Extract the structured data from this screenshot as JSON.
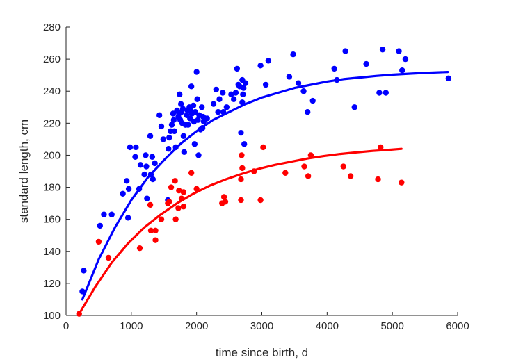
{
  "chart_data": {
    "type": "scatter",
    "xlabel": "time since birth, d",
    "ylabel": "standard length, cm",
    "xlim": [
      0,
      6000
    ],
    "ylim": [
      100,
      280
    ],
    "xticks": [
      0,
      1000,
      2000,
      3000,
      4000,
      5000,
      6000
    ],
    "yticks": [
      100,
      120,
      140,
      160,
      180,
      200,
      220,
      240,
      260,
      280
    ],
    "grid": false,
    "series": [
      {
        "color": "#0000ff",
        "points": [
          [
            270,
            128
          ],
          [
            250,
            115
          ],
          [
            520,
            156
          ],
          [
            580,
            163
          ],
          [
            700,
            163
          ],
          [
            870,
            176
          ],
          [
            930,
            184
          ],
          [
            950,
            161
          ],
          [
            960,
            179
          ],
          [
            980,
            205
          ],
          [
            1060,
            199
          ],
          [
            1070,
            205
          ],
          [
            1120,
            179
          ],
          [
            1140,
            194
          ],
          [
            1200,
            188
          ],
          [
            1220,
            200
          ],
          [
            1230,
            193
          ],
          [
            1240,
            173
          ],
          [
            1290,
            212
          ],
          [
            1300,
            188
          ],
          [
            1320,
            199
          ],
          [
            1330,
            185
          ],
          [
            1360,
            195
          ],
          [
            1430,
            225
          ],
          [
            1460,
            218
          ],
          [
            1490,
            210
          ],
          [
            1560,
            172
          ],
          [
            1570,
            204
          ],
          [
            1580,
            211
          ],
          [
            1600,
            215
          ],
          [
            1620,
            219
          ],
          [
            1640,
            226
          ],
          [
            1650,
            222
          ],
          [
            1660,
            215
          ],
          [
            1680,
            205
          ],
          [
            1700,
            228
          ],
          [
            1720,
            224
          ],
          [
            1730,
            226
          ],
          [
            1740,
            238
          ],
          [
            1750,
            222
          ],
          [
            1760,
            232
          ],
          [
            1770,
            227
          ],
          [
            1780,
            220
          ],
          [
            1790,
            229
          ],
          [
            1800,
            212
          ],
          [
            1810,
            202
          ],
          [
            1830,
            219
          ],
          [
            1850,
            225
          ],
          [
            1860,
            228
          ],
          [
            1870,
            219
          ],
          [
            1890,
            230
          ],
          [
            1900,
            223
          ],
          [
            1910,
            228
          ],
          [
            1920,
            243
          ],
          [
            1930,
            226
          ],
          [
            1950,
            231
          ],
          [
            1960,
            221
          ],
          [
            1970,
            207
          ],
          [
            1980,
            227
          ],
          [
            2000,
            252
          ],
          [
            2010,
            235
          ],
          [
            2020,
            222
          ],
          [
            2030,
            200
          ],
          [
            2040,
            225
          ],
          [
            2060,
            216
          ],
          [
            2080,
            230
          ],
          [
            2090,
            217
          ],
          [
            2100,
            224
          ],
          [
            2110,
            221
          ],
          [
            2160,
            223
          ],
          [
            2260,
            232
          ],
          [
            2300,
            241
          ],
          [
            2330,
            227
          ],
          [
            2350,
            235
          ],
          [
            2400,
            239
          ],
          [
            2410,
            227
          ],
          [
            2460,
            230
          ],
          [
            2530,
            238
          ],
          [
            2570,
            235
          ],
          [
            2600,
            239
          ],
          [
            2620,
            254
          ],
          [
            2640,
            244
          ],
          [
            2660,
            243
          ],
          [
            2680,
            214
          ],
          [
            2700,
            233
          ],
          [
            2700,
            247
          ],
          [
            2710,
            238
          ],
          [
            2720,
            242
          ],
          [
            2730,
            207
          ],
          [
            2750,
            245
          ],
          [
            2980,
            256
          ],
          [
            3060,
            244
          ],
          [
            3100,
            259
          ],
          [
            3420,
            249
          ],
          [
            3480,
            263
          ],
          [
            3560,
            245
          ],
          [
            3640,
            240
          ],
          [
            3700,
            227
          ],
          [
            3780,
            234
          ],
          [
            4110,
            254
          ],
          [
            4150,
            247
          ],
          [
            4280,
            265
          ],
          [
            4420,
            230
          ],
          [
            4600,
            257
          ],
          [
            4800,
            239
          ],
          [
            4850,
            266
          ],
          [
            4900,
            239
          ],
          [
            5100,
            265
          ],
          [
            5150,
            253
          ],
          [
            5200,
            260
          ],
          [
            5860,
            248
          ]
        ],
        "fit": [
          [
            250,
            110
          ],
          [
            500,
            135
          ],
          [
            750,
            155
          ],
          [
            1000,
            172
          ],
          [
            1250,
            186
          ],
          [
            1500,
            197
          ],
          [
            1750,
            207
          ],
          [
            2000,
            215
          ],
          [
            2250,
            222
          ],
          [
            2500,
            227
          ],
          [
            2750,
            232
          ],
          [
            3000,
            236
          ],
          [
            3250,
            239
          ],
          [
            3500,
            242
          ],
          [
            3750,
            244
          ],
          [
            4000,
            246
          ],
          [
            4250,
            247.5
          ],
          [
            4500,
            248.5
          ],
          [
            4750,
            249.5
          ],
          [
            5000,
            250.3
          ],
          [
            5250,
            250.9
          ],
          [
            5500,
            251.4
          ],
          [
            5850,
            252
          ]
        ]
      },
      {
        "color": "#ff0000",
        "points": [
          [
            200,
            101
          ],
          [
            500,
            146
          ],
          [
            650,
            136
          ],
          [
            1130,
            142
          ],
          [
            1290,
            169
          ],
          [
            1300,
            153
          ],
          [
            1370,
            153
          ],
          [
            1370,
            147
          ],
          [
            1460,
            160
          ],
          [
            1560,
            170
          ],
          [
            1580,
            171
          ],
          [
            1610,
            180
          ],
          [
            1670,
            184
          ],
          [
            1680,
            160
          ],
          [
            1720,
            167
          ],
          [
            1730,
            178
          ],
          [
            1770,
            173
          ],
          [
            1800,
            168
          ],
          [
            1800,
            177
          ],
          [
            1920,
            189
          ],
          [
            2000,
            179
          ],
          [
            2390,
            170
          ],
          [
            2420,
            174
          ],
          [
            2440,
            171
          ],
          [
            2680,
            172
          ],
          [
            2680,
            185
          ],
          [
            2690,
            200
          ],
          [
            2700,
            192
          ],
          [
            2880,
            190
          ],
          [
            2980,
            172
          ],
          [
            3020,
            205
          ],
          [
            3360,
            189
          ],
          [
            3650,
            193
          ],
          [
            3710,
            187
          ],
          [
            3750,
            200
          ],
          [
            4250,
            193
          ],
          [
            4360,
            187
          ],
          [
            4780,
            185
          ],
          [
            4820,
            205
          ],
          [
            5140,
            183
          ]
        ],
        "fit": [
          [
            200,
            101
          ],
          [
            450,
            118
          ],
          [
            700,
            133
          ],
          [
            950,
            145
          ],
          [
            1200,
            155
          ],
          [
            1450,
            163
          ],
          [
            1700,
            170
          ],
          [
            1950,
            176
          ],
          [
            2200,
            181
          ],
          [
            2450,
            185
          ],
          [
            2700,
            188.5
          ],
          [
            2950,
            191.5
          ],
          [
            3200,
            194
          ],
          [
            3450,
            196
          ],
          [
            3700,
            198
          ],
          [
            3950,
            199.5
          ],
          [
            4200,
            200.8
          ],
          [
            4450,
            201.8
          ],
          [
            4700,
            202.7
          ],
          [
            4950,
            203.4
          ],
          [
            5140,
            204
          ]
        ]
      }
    ]
  }
}
